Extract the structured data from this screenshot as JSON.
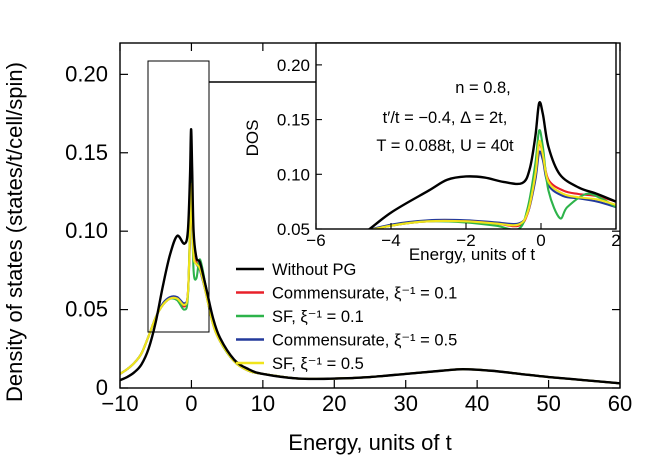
{
  "chart_data": [
    {
      "type": "line",
      "xlabel": "Energy, units of t",
      "ylabel": "Density of states (states/t/cell/spin)",
      "xlim": [
        -10,
        60
      ],
      "ylim": [
        0,
        0.22
      ],
      "xticks": [
        -10,
        0,
        10,
        20,
        30,
        40,
        50,
        60
      ],
      "xtick_labels": [
        "−10",
        "0",
        "10",
        "20",
        "30",
        "40",
        "50",
        "60"
      ],
      "yticks": [
        0,
        0.05,
        0.1,
        0.15,
        0.2
      ],
      "ytick_labels": [
        "0",
        "0.05",
        "0.10",
        "0.15",
        "0.20"
      ],
      "grid": false,
      "legend_position": "lower-center",
      "series": [
        {
          "name": "Without PG",
          "color": "#000000",
          "points": [
            [
              -10,
              0.005
            ],
            [
              -9,
              0.007
            ],
            [
              -8,
              0.01
            ],
            [
              -7,
              0.015
            ],
            [
              -6,
              0.025
            ],
            [
              -5,
              0.042
            ],
            [
              -4,
              0.065
            ],
            [
              -3,
              0.085
            ],
            [
              -2,
              0.097
            ],
            [
              -1,
              0.092
            ],
            [
              -0.5,
              0.1
            ],
            [
              -0.2,
              0.135
            ],
            [
              -0.05,
              0.165
            ],
            [
              0.1,
              0.14
            ],
            [
              0.3,
              0.1
            ],
            [
              0.7,
              0.083
            ],
            [
              1.2,
              0.08
            ],
            [
              2,
              0.065
            ],
            [
              3,
              0.045
            ],
            [
              4,
              0.032
            ],
            [
              6,
              0.018
            ],
            [
              8,
              0.012
            ],
            [
              10,
              0.009
            ],
            [
              15,
              0.006
            ],
            [
              20,
              0.006
            ],
            [
              25,
              0.007
            ],
            [
              30,
              0.009
            ],
            [
              35,
              0.011
            ],
            [
              38,
              0.012
            ],
            [
              42,
              0.011
            ],
            [
              46,
              0.009
            ],
            [
              50,
              0.007
            ],
            [
              55,
              0.005
            ],
            [
              60,
              0.003
            ]
          ]
        },
        {
          "name": "Commensurate, ξ⁻¹ = 0.1",
          "color": "#e8202a",
          "points": [
            [
              -10,
              0.009
            ],
            [
              -9,
              0.012
            ],
            [
              -8,
              0.016
            ],
            [
              -7,
              0.022
            ],
            [
              -6,
              0.033
            ],
            [
              -5,
              0.045
            ],
            [
              -4,
              0.053
            ],
            [
              -3,
              0.057
            ],
            [
              -2,
              0.057
            ],
            [
              -1,
              0.052
            ],
            [
              -0.5,
              0.06
            ],
            [
              -0.2,
              0.1
            ],
            [
              -0.05,
              0.13
            ],
            [
              0.1,
              0.11
            ],
            [
              0.3,
              0.085
            ],
            [
              0.7,
              0.08
            ],
            [
              1.2,
              0.077
            ],
            [
              2,
              0.062
            ],
            [
              3,
              0.042
            ],
            [
              4,
              0.03
            ],
            [
              6,
              0.017
            ],
            [
              8,
              0.011
            ],
            [
              10,
              0.009
            ],
            [
              15,
              0.006
            ],
            [
              20,
              0.006
            ],
            [
              25,
              0.007
            ],
            [
              30,
              0.009
            ],
            [
              35,
              0.011
            ],
            [
              38,
              0.012
            ],
            [
              42,
              0.011
            ],
            [
              46,
              0.009
            ],
            [
              50,
              0.007
            ],
            [
              55,
              0.005
            ],
            [
              60,
              0.003
            ]
          ]
        },
        {
          "name": "SF, ξ⁻¹ = 0.1",
          "color": "#2db34a",
          "points": [
            [
              -10,
              0.009
            ],
            [
              -9,
              0.012
            ],
            [
              -8,
              0.016
            ],
            [
              -7,
              0.022
            ],
            [
              -6,
              0.033
            ],
            [
              -5,
              0.045
            ],
            [
              -4,
              0.053
            ],
            [
              -3,
              0.057
            ],
            [
              -2,
              0.056
            ],
            [
              -1,
              0.05
            ],
            [
              -0.5,
              0.058
            ],
            [
              -0.2,
              0.105
            ],
            [
              -0.05,
              0.14
            ],
            [
              0.1,
              0.115
            ],
            [
              0.3,
              0.075
            ],
            [
              0.7,
              0.07
            ],
            [
              1.2,
              0.082
            ],
            [
              2,
              0.065
            ],
            [
              3,
              0.043
            ],
            [
              4,
              0.03
            ],
            [
              6,
              0.017
            ],
            [
              8,
              0.011
            ],
            [
              10,
              0.009
            ],
            [
              15,
              0.006
            ],
            [
              20,
              0.006
            ],
            [
              25,
              0.007
            ],
            [
              30,
              0.009
            ],
            [
              35,
              0.011
            ],
            [
              38,
              0.012
            ],
            [
              42,
              0.011
            ],
            [
              46,
              0.009
            ],
            [
              50,
              0.007
            ],
            [
              55,
              0.005
            ],
            [
              60,
              0.003
            ]
          ]
        },
        {
          "name": "Commensurate, ξ⁻¹ = 0.5",
          "color": "#233a9c",
          "points": [
            [
              -10,
              0.009
            ],
            [
              -9,
              0.012
            ],
            [
              -8,
              0.016
            ],
            [
              -7,
              0.022
            ],
            [
              -6,
              0.033
            ],
            [
              -5,
              0.045
            ],
            [
              -4,
              0.054
            ],
            [
              -3,
              0.058
            ],
            [
              -2,
              0.058
            ],
            [
              -1,
              0.054
            ],
            [
              -0.5,
              0.06
            ],
            [
              -0.2,
              0.095
            ],
            [
              -0.05,
              0.125
            ],
            [
              0.1,
              0.108
            ],
            [
              0.3,
              0.085
            ],
            [
              0.7,
              0.079
            ],
            [
              1.2,
              0.075
            ],
            [
              2,
              0.061
            ],
            [
              3,
              0.041
            ],
            [
              4,
              0.03
            ],
            [
              6,
              0.017
            ],
            [
              8,
              0.011
            ],
            [
              10,
              0.009
            ],
            [
              15,
              0.006
            ],
            [
              20,
              0.006
            ],
            [
              25,
              0.007
            ],
            [
              30,
              0.009
            ],
            [
              35,
              0.011
            ],
            [
              38,
              0.012
            ],
            [
              42,
              0.011
            ],
            [
              46,
              0.009
            ],
            [
              50,
              0.007
            ],
            [
              55,
              0.005
            ],
            [
              60,
              0.003
            ]
          ]
        },
        {
          "name": "SF, ξ⁻¹ = 0.5",
          "color": "#f0e41c",
          "points": [
            [
              -10,
              0.009
            ],
            [
              -9,
              0.012
            ],
            [
              -8,
              0.016
            ],
            [
              -7,
              0.022
            ],
            [
              -6,
              0.033
            ],
            [
              -5,
              0.045
            ],
            [
              -4,
              0.053
            ],
            [
              -3,
              0.057
            ],
            [
              -2,
              0.057
            ],
            [
              -1,
              0.053
            ],
            [
              -0.5,
              0.06
            ],
            [
              -0.2,
              0.1
            ],
            [
              -0.05,
              0.13
            ],
            [
              0.1,
              0.11
            ],
            [
              0.3,
              0.084
            ],
            [
              0.7,
              0.079
            ],
            [
              1.2,
              0.076
            ],
            [
              2,
              0.061
            ],
            [
              3,
              0.041
            ],
            [
              4,
              0.03
            ],
            [
              6,
              0.017
            ],
            [
              8,
              0.011
            ],
            [
              10,
              0.009
            ],
            [
              15,
              0.006
            ],
            [
              20,
              0.006
            ],
            [
              25,
              0.007
            ],
            [
              30,
              0.009
            ],
            [
              35,
              0.011
            ],
            [
              38,
              0.012
            ],
            [
              42,
              0.011
            ],
            [
              46,
              0.009
            ],
            [
              50,
              0.007
            ],
            [
              55,
              0.005
            ],
            [
              60,
              0.003
            ]
          ]
        }
      ]
    },
    {
      "type": "line",
      "xlabel": "Energy, units of t",
      "ylabel": "DOS",
      "xlim": [
        -6,
        2
      ],
      "ylim": [
        0.05,
        0.22
      ],
      "xticks": [
        -6,
        -4,
        -2,
        0,
        2
      ],
      "xtick_labels": [
        "−6",
        "−4",
        "−2",
        "0",
        "2"
      ],
      "yticks": [
        0.05,
        0.1,
        0.15,
        0.2
      ],
      "ytick_labels": [
        "0.05",
        "0.10",
        "0.15",
        "0.20"
      ],
      "grid": false,
      "annotation": [
        "n = 0.8,",
        "t′/t = −0.4, Δ = 2t,",
        "T = 0.088t, U = 40t"
      ],
      "series": [
        {
          "name": "Without PG",
          "color": "#000000",
          "points": [
            [
              -6,
              0.03
            ],
            [
              -5,
              0.04
            ],
            [
              -4,
              0.065
            ],
            [
              -3,
              0.085
            ],
            [
              -2.5,
              0.095
            ],
            [
              -2,
              0.098
            ],
            [
              -1.5,
              0.097
            ],
            [
              -1,
              0.093
            ],
            [
              -0.5,
              0.092
            ],
            [
              -0.3,
              0.105
            ],
            [
              -0.15,
              0.135
            ],
            [
              -0.05,
              0.165
            ],
            [
              0.05,
              0.155
            ],
            [
              0.2,
              0.125
            ],
            [
              0.5,
              0.1
            ],
            [
              1,
              0.088
            ],
            [
              1.5,
              0.082
            ],
            [
              2,
              0.075
            ]
          ]
        },
        {
          "name": "Commensurate, ξ⁻¹ = 0.1",
          "color": "#e8202a",
          "points": [
            [
              -6,
              0.033
            ],
            [
              -5,
              0.045
            ],
            [
              -4,
              0.053
            ],
            [
              -3,
              0.057
            ],
            [
              -2,
              0.057
            ],
            [
              -1.2,
              0.055
            ],
            [
              -0.6,
              0.053
            ],
            [
              -0.35,
              0.065
            ],
            [
              -0.15,
              0.1
            ],
            [
              -0.05,
              0.128
            ],
            [
              0.05,
              0.118
            ],
            [
              0.2,
              0.095
            ],
            [
              0.6,
              0.085
            ],
            [
              1,
              0.082
            ],
            [
              1.5,
              0.08
            ],
            [
              2,
              0.075
            ]
          ]
        },
        {
          "name": "SF, ξ⁻¹ = 0.1",
          "color": "#2db34a",
          "points": [
            [
              -6,
              0.033
            ],
            [
              -5,
              0.045
            ],
            [
              -4,
              0.053
            ],
            [
              -3,
              0.057
            ],
            [
              -2,
              0.056
            ],
            [
              -1.2,
              0.053
            ],
            [
              -0.6,
              0.05
            ],
            [
              -0.35,
              0.07
            ],
            [
              -0.15,
              0.11
            ],
            [
              -0.05,
              0.14
            ],
            [
              0.05,
              0.125
            ],
            [
              0.2,
              0.085
            ],
            [
              0.5,
              0.06
            ],
            [
              0.7,
              0.07
            ],
            [
              1.2,
              0.082
            ],
            [
              1.6,
              0.078
            ],
            [
              2,
              0.07
            ]
          ]
        },
        {
          "name": "Commensurate, ξ⁻¹ = 0.5",
          "color": "#233a9c",
          "points": [
            [
              -6,
              0.033
            ],
            [
              -5,
              0.045
            ],
            [
              -4,
              0.054
            ],
            [
              -3,
              0.058
            ],
            [
              -2,
              0.058
            ],
            [
              -1.2,
              0.056
            ],
            [
              -0.6,
              0.055
            ],
            [
              -0.35,
              0.065
            ],
            [
              -0.15,
              0.095
            ],
            [
              -0.05,
              0.12
            ],
            [
              0.05,
              0.113
            ],
            [
              0.2,
              0.09
            ],
            [
              0.6,
              0.08
            ],
            [
              1,
              0.078
            ],
            [
              1.5,
              0.075
            ],
            [
              2,
              0.07
            ]
          ]
        },
        {
          "name": "SF, ξ⁻¹ = 0.5",
          "color": "#f0e41c",
          "points": [
            [
              -6,
              0.033
            ],
            [
              -5,
              0.045
            ],
            [
              -4,
              0.053
            ],
            [
              -3,
              0.057
            ],
            [
              -2,
              0.057
            ],
            [
              -1.2,
              0.055
            ],
            [
              -0.6,
              0.054
            ],
            [
              -0.35,
              0.066
            ],
            [
              -0.15,
              0.1
            ],
            [
              -0.05,
              0.13
            ],
            [
              0.05,
              0.118
            ],
            [
              0.2,
              0.093
            ],
            [
              0.6,
              0.082
            ],
            [
              1,
              0.079
            ],
            [
              1.5,
              0.077
            ],
            [
              2,
              0.072
            ]
          ]
        }
      ]
    }
  ]
}
